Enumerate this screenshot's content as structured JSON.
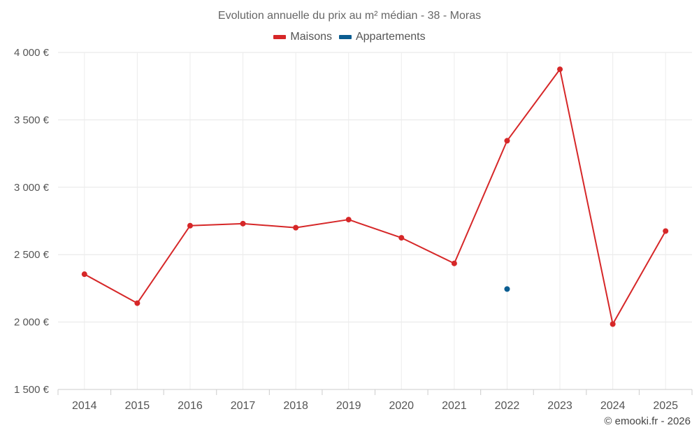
{
  "chart_data": {
    "type": "line",
    "title": "Evolution annuelle du prix au m² médian - 38 - Moras",
    "xlabel": "",
    "ylabel": "",
    "categories": [
      "2014",
      "2015",
      "2016",
      "2017",
      "2018",
      "2019",
      "2020",
      "2021",
      "2022",
      "2023",
      "2024",
      "2025"
    ],
    "ylim": [
      1500,
      4000
    ],
    "yticks": [
      1500,
      2000,
      2500,
      3000,
      3500,
      4000
    ],
    "ytick_labels": [
      "1 500 €",
      "2 000 €",
      "2 500 €",
      "3 000 €",
      "3 500 €",
      "4 000 €"
    ],
    "grid": true,
    "legend_position": "top-center",
    "series": [
      {
        "name": "Maisons",
        "color": "#d62728",
        "values": [
          2355,
          2140,
          2715,
          2730,
          2700,
          2760,
          2625,
          2435,
          3345,
          3875,
          1985,
          2675
        ]
      },
      {
        "name": "Appartements",
        "color": "#0b5d91",
        "values": [
          null,
          null,
          null,
          null,
          null,
          null,
          null,
          null,
          2245,
          null,
          null,
          null
        ]
      }
    ]
  },
  "credit": "© emooki.fr - 2026"
}
